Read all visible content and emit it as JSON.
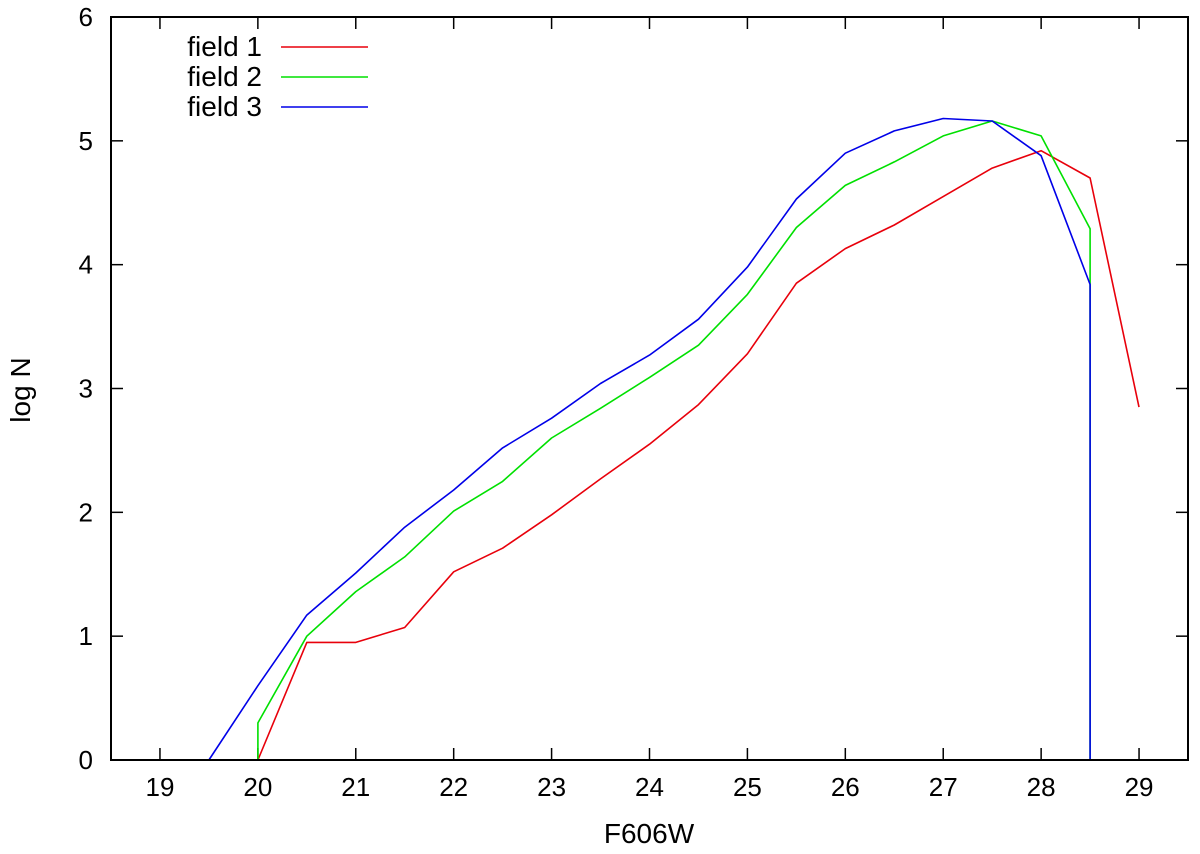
{
  "chart_data": {
    "type": "line",
    "title": "",
    "xlabel": "F606W",
    "ylabel": "log N",
    "xlim": [
      18.5,
      29.5
    ],
    "ylim": [
      0,
      6
    ],
    "xticks": [
      19,
      20,
      21,
      22,
      23,
      24,
      25,
      26,
      27,
      28,
      29
    ],
    "yticks": [
      0,
      1,
      2,
      3,
      4,
      5,
      6
    ],
    "grid": false,
    "legend_position": "top-left",
    "series": [
      {
        "name": "field 1",
        "color": "#e8000b",
        "points": [
          [
            20,
            0.0
          ],
          [
            20.5,
            0.95
          ],
          [
            21,
            0.95
          ],
          [
            21.5,
            1.07
          ],
          [
            22,
            1.52
          ],
          [
            22.5,
            1.71
          ],
          [
            23,
            1.98
          ],
          [
            23.5,
            2.27
          ],
          [
            24,
            2.55
          ],
          [
            24.5,
            2.87
          ],
          [
            25,
            3.28
          ],
          [
            25.5,
            3.85
          ],
          [
            26,
            4.13
          ],
          [
            26.5,
            4.32
          ],
          [
            27,
            4.55
          ],
          [
            27.5,
            4.78
          ],
          [
            28,
            4.92
          ],
          [
            28.5,
            4.7
          ],
          [
            29,
            2.85
          ]
        ]
      },
      {
        "name": "field 2",
        "color": "#00e000",
        "points": [
          [
            20,
            0.0
          ],
          [
            20,
            0.3
          ],
          [
            20.5,
            1.0
          ],
          [
            21,
            1.36
          ],
          [
            21.5,
            1.64
          ],
          [
            22,
            2.01
          ],
          [
            22.5,
            2.25
          ],
          [
            23,
            2.6
          ],
          [
            23.5,
            2.84
          ],
          [
            24,
            3.09
          ],
          [
            24.5,
            3.35
          ],
          [
            25,
            3.76
          ],
          [
            25.5,
            4.3
          ],
          [
            26,
            4.64
          ],
          [
            26.5,
            4.83
          ],
          [
            27,
            5.04
          ],
          [
            27.5,
            5.16
          ],
          [
            28,
            5.04
          ],
          [
            28.5,
            4.29
          ],
          [
            28.5,
            0.0
          ]
        ]
      },
      {
        "name": "field 3",
        "color": "#0000e8",
        "points": [
          [
            19.5,
            0.0
          ],
          [
            20,
            0.6
          ],
          [
            20.5,
            1.17
          ],
          [
            21,
            1.51
          ],
          [
            21.5,
            1.88
          ],
          [
            22,
            2.18
          ],
          [
            22.5,
            2.52
          ],
          [
            23,
            2.76
          ],
          [
            23.5,
            3.04
          ],
          [
            24,
            3.27
          ],
          [
            24.5,
            3.56
          ],
          [
            25,
            3.98
          ],
          [
            25.5,
            4.53
          ],
          [
            26,
            4.9
          ],
          [
            26.5,
            5.08
          ],
          [
            27,
            5.18
          ],
          [
            27.5,
            5.16
          ],
          [
            28,
            4.88
          ],
          [
            28.5,
            3.84
          ],
          [
            28.5,
            0.0
          ]
        ]
      }
    ]
  }
}
